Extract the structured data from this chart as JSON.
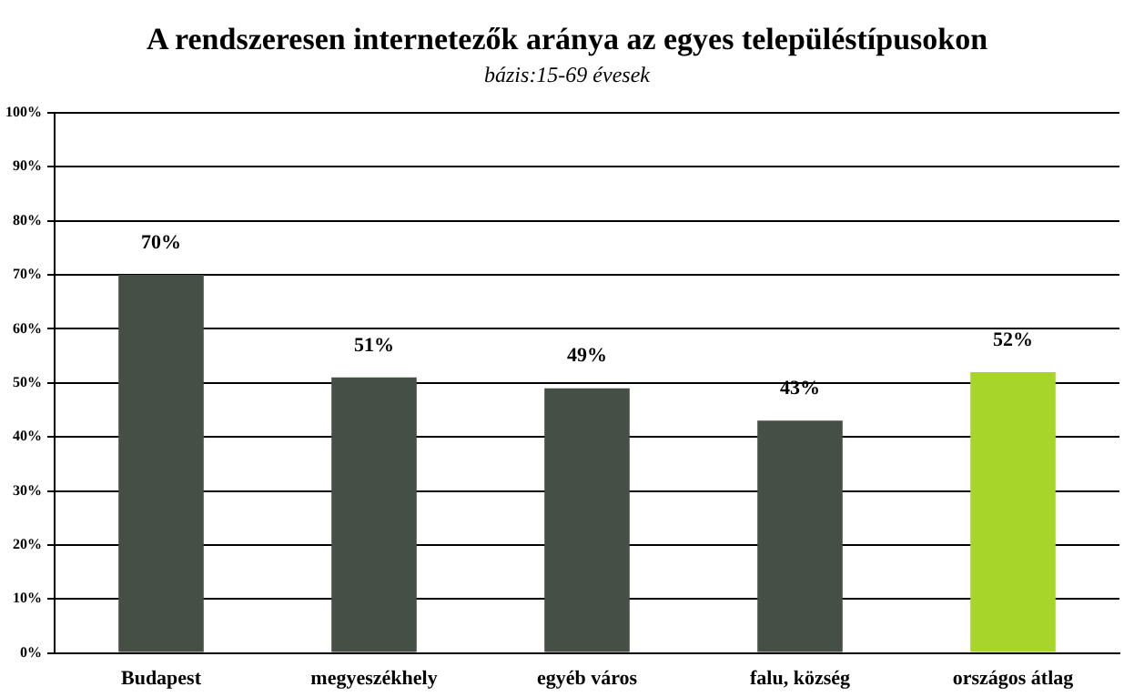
{
  "chart_data": {
    "type": "bar",
    "title": "A rendszeresen internetezők aránya az egyes településtípusokon",
    "subtitle": "bázis:15-69 évesek",
    "categories": [
      "Budapest",
      "megyeszékhely",
      "egyéb város",
      "falu, község",
      "országos átlag"
    ],
    "values": [
      70,
      51,
      49,
      43,
      52
    ],
    "value_labels": [
      "70%",
      "51%",
      "49%",
      "43%",
      "52%"
    ],
    "colors": [
      "#454f46",
      "#454f46",
      "#454f46",
      "#454f46",
      "#a8d52a"
    ],
    "ylim": [
      0,
      100
    ],
    "yticks": [
      {
        "value": 0,
        "label": "0%"
      },
      {
        "value": 10,
        "label": "10%"
      },
      {
        "value": 20,
        "label": "20%"
      },
      {
        "value": 30,
        "label": "30%"
      },
      {
        "value": 40,
        "label": "40%"
      },
      {
        "value": 50,
        "label": "50%"
      },
      {
        "value": 60,
        "label": "60%"
      },
      {
        "value": 70,
        "label": "70%"
      },
      {
        "value": 80,
        "label": "80%"
      },
      {
        "value": 90,
        "label": "90%"
      },
      {
        "value": 100,
        "label": "100%"
      }
    ],
    "grid": "y",
    "legend": false
  }
}
